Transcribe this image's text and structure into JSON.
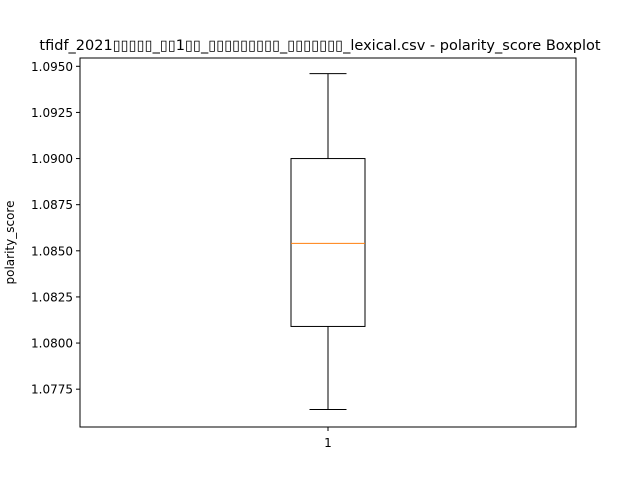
{
  "chart_data": {
    "type": "boxplot",
    "title": "tfidf_2021▯▯▯▯▯_▯▯1▯▯_▯▯▯▯▯▯▯▯▯_▯▯▯▯▯▯▯_lexical.csv - polarity_score Boxplot",
    "xlabel": "",
    "ylabel": "polarity_score",
    "ylim": [
      1.07545,
      1.09545
    ],
    "yticks": [
      1.0775,
      1.08,
      1.0825,
      1.085,
      1.0875,
      1.09,
      1.0925,
      1.095
    ],
    "ytick_labels": [
      "1.0775",
      "1.0800",
      "1.0825",
      "1.0850",
      "1.0875",
      "1.0900",
      "1.0925",
      "1.0950"
    ],
    "categories": [
      "1"
    ],
    "boxes": [
      {
        "label": "1",
        "whisker_low": 1.0764,
        "q1": 1.0809,
        "median": 1.0854,
        "q3": 1.09,
        "whisker_high": 1.0946
      }
    ],
    "grid": false,
    "colors": {
      "box": "#000000",
      "median": "#ff7f0e"
    }
  }
}
